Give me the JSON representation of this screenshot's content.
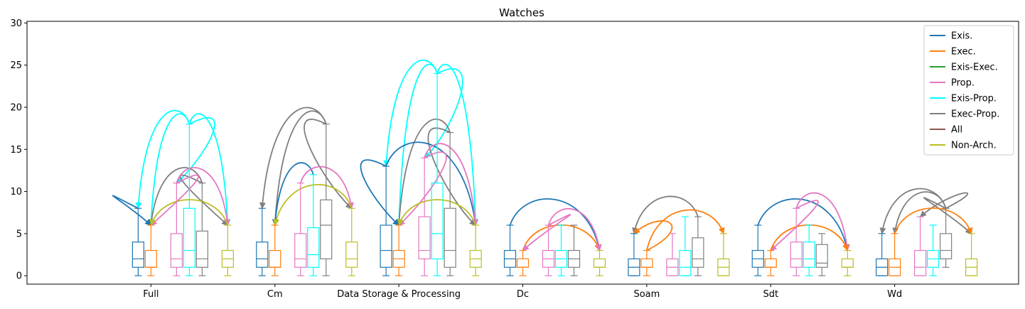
{
  "chart_data": {
    "type": "box",
    "title": "Watches",
    "ylim": [
      -1,
      30.2
    ],
    "yticks": [
      0,
      5,
      10,
      15,
      20,
      25,
      30
    ],
    "grid": false,
    "legend_position": "top-right",
    "series": [
      {
        "name": "Exis.",
        "color": "#1f77b4"
      },
      {
        "name": "Exec.",
        "color": "#ff7f0e"
      },
      {
        "name": "Exis-Exec.",
        "color": "#2ca02c"
      },
      {
        "name": "Prop.",
        "color": "#e377c2"
      },
      {
        "name": "Exis-Prop.",
        "color": "#00ffff"
      },
      {
        "name": "Exec-Prop.",
        "color": "#7f7f7f"
      },
      {
        "name": "All",
        "color": "#8c564b"
      },
      {
        "name": "Non-Arch.",
        "color": "#bcbd22"
      }
    ],
    "groups": [
      {
        "label": "Full",
        "boxes": [
          {
            "series": "Exis.",
            "whislo": 0,
            "q1": 1,
            "med": 2,
            "q3": 4,
            "whishi": 8
          },
          {
            "series": "Exec.",
            "whislo": 0,
            "q1": 1,
            "med": 1,
            "q3": 3,
            "whishi": 6
          },
          {
            "series": "Prop.",
            "whislo": 0,
            "q1": 1,
            "med": 2,
            "q3": 5,
            "whishi": 11
          },
          {
            "series": "Exis-Prop.",
            "whislo": 0,
            "q1": 1,
            "med": 3,
            "q3": 8,
            "whishi": 18
          },
          {
            "series": "Exec-Prop.",
            "whislo": 0,
            "q1": 1,
            "med": 2,
            "q3": 5.3,
            "whishi": 11
          },
          {
            "series": "Non-Arch.",
            "whislo": 0,
            "q1": 1,
            "med": 2,
            "q3": 3,
            "whishi": 6
          }
        ]
      },
      {
        "label": "Cm",
        "boxes": [
          {
            "series": "Exis.",
            "whislo": 0,
            "q1": 1,
            "med": 2,
            "q3": 4,
            "whishi": 8
          },
          {
            "series": "Exec.",
            "whislo": 0,
            "q1": 1,
            "med": 1,
            "q3": 3,
            "whishi": 6
          },
          {
            "series": "Prop.",
            "whislo": 0,
            "q1": 1,
            "med": 2,
            "q3": 5,
            "whishi": 11
          },
          {
            "series": "Exis-Prop.",
            "whislo": 0,
            "q1": 1,
            "med": 2.5,
            "q3": 5.7,
            "whishi": 12
          },
          {
            "series": "Exec-Prop.",
            "whislo": 0,
            "q1": 2,
            "med": 6,
            "q3": 9,
            "whishi": 18
          },
          {
            "series": "Non-Arch.",
            "whislo": 0,
            "q1": 1,
            "med": 2,
            "q3": 4,
            "whishi": 8
          }
        ]
      },
      {
        "label": "Data Storage & Processing",
        "boxes": [
          {
            "series": "Exis.",
            "whislo": 0,
            "q1": 1,
            "med": 3,
            "q3": 6,
            "whishi": 13
          },
          {
            "series": "Exec.",
            "whislo": 0,
            "q1": 1,
            "med": 2,
            "q3": 3,
            "whishi": 6
          },
          {
            "series": "Prop.",
            "whislo": 0,
            "q1": 2,
            "med": 3,
            "q3": 7,
            "whishi": 14
          },
          {
            "series": "Exis-Prop.",
            "whislo": 0,
            "q1": 2,
            "med": 5,
            "q3": 11,
            "whishi": 24
          },
          {
            "series": "Exec-Prop.",
            "whislo": 0,
            "q1": 1,
            "med": 3,
            "q3": 8,
            "whishi": 17
          },
          {
            "series": "Non-Arch.",
            "whislo": 0,
            "q1": 1,
            "med": 2,
            "q3": 3,
            "whishi": 6
          }
        ]
      },
      {
        "label": "Dc",
        "boxes": [
          {
            "series": "Exis.",
            "whislo": 0,
            "q1": 1,
            "med": 2,
            "q3": 3,
            "whishi": 6
          },
          {
            "series": "Exec.",
            "whislo": 0,
            "q1": 1,
            "med": 1,
            "q3": 2,
            "whishi": 3
          },
          {
            "series": "Prop.",
            "whislo": 0,
            "q1": 1,
            "med": 2,
            "q3": 3,
            "whishi": 6
          },
          {
            "series": "Exis-Prop.",
            "whislo": 0,
            "q1": 1,
            "med": 2,
            "q3": 3,
            "whishi": 6
          },
          {
            "series": "Exec-Prop.",
            "whislo": 0,
            "q1": 1,
            "med": 2,
            "q3": 3,
            "whishi": 6
          },
          {
            "series": "Non-Arch.",
            "whislo": 0,
            "q1": 1,
            "med": 1,
            "q3": 2,
            "whishi": 3
          }
        ]
      },
      {
        "label": "Soam",
        "boxes": [
          {
            "series": "Exis.",
            "whislo": 0,
            "q1": 0,
            "med": 1,
            "q3": 2,
            "whishi": 5
          },
          {
            "series": "Exec.",
            "whislo": 0,
            "q1": 1,
            "med": 1,
            "q3": 2,
            "whishi": 3
          },
          {
            "series": "Prop.",
            "whislo": 0,
            "q1": 0,
            "med": 1,
            "q3": 2,
            "whishi": 5
          },
          {
            "series": "Exis-Prop.",
            "whislo": 0,
            "q1": 0,
            "med": 1,
            "q3": 3,
            "whishi": 7
          },
          {
            "series": "Exec-Prop.",
            "whislo": 0,
            "q1": 1,
            "med": 2,
            "q3": 4.5,
            "whishi": 7
          },
          {
            "series": "Non-Arch.",
            "whislo": 0,
            "q1": 0,
            "med": 1,
            "q3": 2,
            "whishi": 5
          }
        ]
      },
      {
        "label": "Sdt",
        "boxes": [
          {
            "series": "Exis.",
            "whislo": 0,
            "q1": 1,
            "med": 2,
            "q3": 3,
            "whishi": 6
          },
          {
            "series": "Exec.",
            "whislo": 0,
            "q1": 1,
            "med": 1,
            "q3": 2,
            "whishi": 3
          },
          {
            "series": "Prop.",
            "whislo": 0,
            "q1": 1,
            "med": 2,
            "q3": 4,
            "whishi": 8
          },
          {
            "series": "Exis-Prop.",
            "whislo": 0,
            "q1": 1,
            "med": 2,
            "q3": 4,
            "whishi": 6
          },
          {
            "series": "Exec-Prop.",
            "whislo": 0,
            "q1": 1,
            "med": 1.5,
            "q3": 3.7,
            "whishi": 5
          },
          {
            "series": "Non-Arch.",
            "whislo": 0,
            "q1": 1,
            "med": 1,
            "q3": 2,
            "whishi": 3
          }
        ]
      },
      {
        "label": "Wd",
        "boxes": [
          {
            "series": "Exis.",
            "whislo": 0,
            "q1": 0,
            "med": 1,
            "q3": 2,
            "whishi": 5
          },
          {
            "series": "Exec.",
            "whislo": 0,
            "q1": 0,
            "med": 1,
            "q3": 2,
            "whishi": 5
          },
          {
            "series": "Prop.",
            "whislo": 0,
            "q1": 0,
            "med": 1,
            "q3": 3,
            "whishi": 7
          },
          {
            "series": "Exis-Prop.",
            "whislo": 0,
            "q1": 1,
            "med": 2,
            "q3": 3,
            "whishi": 6
          },
          {
            "series": "Exec-Prop.",
            "whislo": 1,
            "q1": 2,
            "med": 3,
            "q3": 5,
            "whishi": 8
          },
          {
            "series": "Non-Arch.",
            "whislo": 0,
            "q1": 0,
            "med": 1,
            "q3": 2,
            "whishi": 5
          }
        ]
      }
    ],
    "arrows": [
      {
        "group": 0,
        "from": "Exis-Prop.",
        "to": "Exis.",
        "color": "#00ffff"
      },
      {
        "group": 0,
        "from": "Exis-Prop.",
        "to": "Exec.",
        "color": "#00ffff"
      },
      {
        "group": 0,
        "from": "Exis-Prop.",
        "to": "Prop.",
        "color": "#00ffff"
      },
      {
        "group": 0,
        "from": "Exis-Prop.",
        "to": "Non-Arch.",
        "color": "#00ffff"
      },
      {
        "group": 0,
        "from": "Exec-Prop.",
        "to": "Exec.",
        "color": "#7f7f7f"
      },
      {
        "group": 0,
        "from": "Exec-Prop.",
        "to": "Non-Arch.",
        "color": "#7f7f7f"
      },
      {
        "group": 0,
        "from": "Exis.",
        "to": "Exec.",
        "color": "#1f77b4"
      },
      {
        "group": 0,
        "from": "Prop.",
        "to": "Exec.",
        "color": "#e377c2"
      },
      {
        "group": 0,
        "from": "Prop.",
        "to": "Non-Arch.",
        "color": "#e377c2"
      },
      {
        "group": 0,
        "from": "Non-Arch.",
        "to": "Exec.",
        "color": "#bcbd22"
      },
      {
        "group": 1,
        "from": "Exec-Prop.",
        "to": "Exis.",
        "color": "#7f7f7f"
      },
      {
        "group": 1,
        "from": "Exec-Prop.",
        "to": "Exec.",
        "color": "#7f7f7f"
      },
      {
        "group": 1,
        "from": "Exec-Prop.",
        "to": "Non-Arch.",
        "color": "#7f7f7f"
      },
      {
        "group": 1,
        "from": "Exis-Prop.",
        "to": "Exec.",
        "color": "#1f77b4"
      },
      {
        "group": 1,
        "from": "Prop.",
        "to": "Non-Arch.",
        "color": "#e377c2"
      },
      {
        "group": 1,
        "from": "Non-Arch.",
        "to": "Exec.",
        "color": "#bcbd22"
      },
      {
        "group": 2,
        "from": "Exis-Prop.",
        "to": "Exis.",
        "color": "#00ffff"
      },
      {
        "group": 2,
        "from": "Exis-Prop.",
        "to": "Exec.",
        "color": "#00ffff"
      },
      {
        "group": 2,
        "from": "Exis-Prop.",
        "to": "Prop.",
        "color": "#00ffff"
      },
      {
        "group": 2,
        "from": "Exis-Prop.",
        "to": "Non-Arch.",
        "color": "#00ffff"
      },
      {
        "group": 2,
        "from": "Exec-Prop.",
        "to": "Exec.",
        "color": "#7f7f7f"
      },
      {
        "group": 2,
        "from": "Exec-Prop.",
        "to": "Non-Arch.",
        "color": "#7f7f7f"
      },
      {
        "group": 2,
        "from": "Exis.",
        "to": "Exec.",
        "color": "#1f77b4"
      },
      {
        "group": 2,
        "from": "Exis.",
        "to": "Non-Arch.",
        "color": "#1f77b4"
      },
      {
        "group": 2,
        "from": "Prop.",
        "to": "Exec.",
        "color": "#e377c2"
      },
      {
        "group": 2,
        "from": "Prop.",
        "to": "Non-Arch.",
        "color": "#e377c2"
      },
      {
        "group": 2,
        "from": "Non-Arch.",
        "to": "Exec.",
        "color": "#bcbd22"
      },
      {
        "group": 3,
        "from": "Exis.",
        "to": "Non-Arch.",
        "color": "#1f77b4"
      },
      {
        "group": 3,
        "from": "Exec.",
        "to": "Non-Arch.",
        "color": "#ff7f0e"
      },
      {
        "group": 3,
        "from": "Prop.",
        "to": "Exec.",
        "color": "#e377c2"
      },
      {
        "group": 3,
        "from": "Prop.",
        "to": "Non-Arch.",
        "color": "#e377c2"
      },
      {
        "group": 4,
        "from": "Exec-Prop.",
        "to": "Exis.",
        "color": "#7f7f7f"
      },
      {
        "group": 4,
        "from": "Exec.",
        "to": "Exis.",
        "color": "#ff7f0e"
      },
      {
        "group": 4,
        "from": "Exec.",
        "to": "Non-Arch.",
        "color": "#ff7f0e"
      },
      {
        "group": 5,
        "from": "Exis.",
        "to": "Non-Arch.",
        "color": "#1f77b4"
      },
      {
        "group": 5,
        "from": "Prop.",
        "to": "Exec.",
        "color": "#e377c2"
      },
      {
        "group": 5,
        "from": "Prop.",
        "to": "Non-Arch.",
        "color": "#e377c2"
      },
      {
        "group": 5,
        "from": "Exec.",
        "to": "Non-Arch.",
        "color": "#ff7f0e"
      },
      {
        "group": 6,
        "from": "Exec-Prop.",
        "to": "Exis.",
        "color": "#7f7f7f"
      },
      {
        "group": 6,
        "from": "Exec-Prop.",
        "to": "Exec.",
        "color": "#7f7f7f"
      },
      {
        "group": 6,
        "from": "Exec-Prop.",
        "to": "Prop.",
        "color": "#7f7f7f"
      },
      {
        "group": 6,
        "from": "Exec-Prop.",
        "to": "Non-Arch.",
        "color": "#7f7f7f"
      },
      {
        "group": 6,
        "from": "Exec.",
        "to": "Non-Arch.",
        "color": "#ff7f0e"
      }
    ]
  }
}
